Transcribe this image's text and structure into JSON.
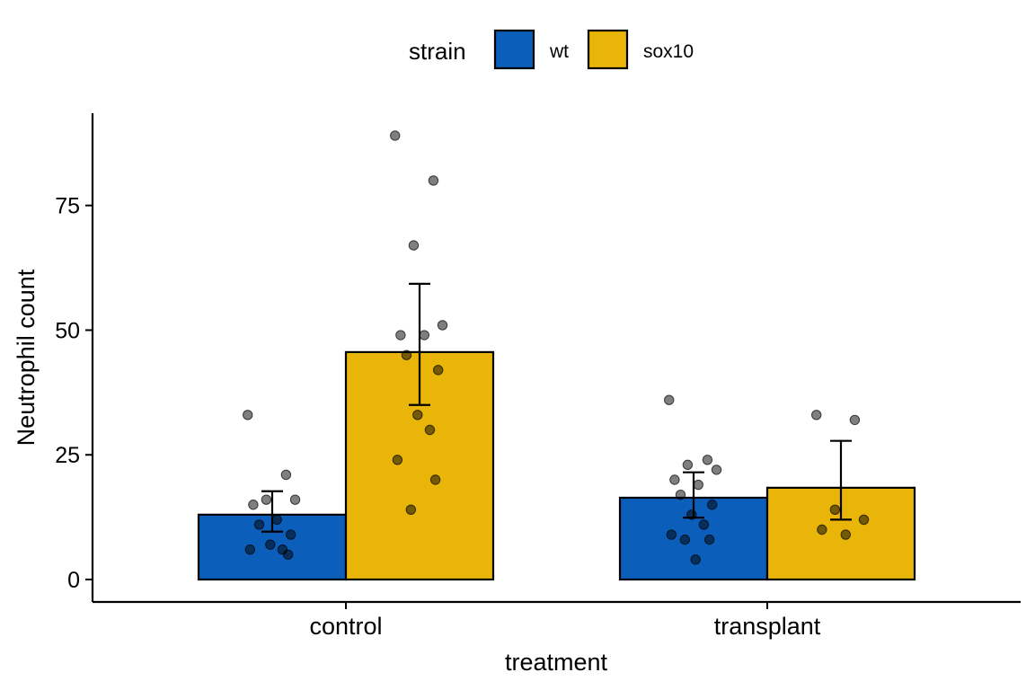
{
  "chart_data": {
    "type": "bar",
    "xlabel": "treatment",
    "ylabel": "Neutrophil count",
    "categories": [
      "control",
      "transplant"
    ],
    "ylim": [
      -4.5,
      93.5
    ],
    "yticks": [
      0,
      25,
      50,
      75
    ],
    "grid": false,
    "legend": {
      "title": "strain",
      "position": "top"
    },
    "series": [
      {
        "name": "wt",
        "color": "#0C5EBB",
        "values": [
          13.0,
          16.4
        ],
        "error": [
          [
            9.6,
            17.7
          ],
          [
            12.4,
            21.5
          ]
        ],
        "points": [
          [
            33,
            21,
            16,
            16,
            15,
            12,
            11,
            9,
            7,
            6,
            6,
            5
          ],
          [
            36,
            24,
            23,
            22,
            20,
            19,
            17,
            15,
            13,
            11,
            9,
            8,
            8,
            4
          ]
        ]
      },
      {
        "name": "sox10",
        "color": "#E9B508",
        "values": [
          45.6,
          18.4
        ],
        "error": [
          [
            35.0,
            59.3
          ],
          [
            12.0,
            27.8
          ]
        ],
        "points": [
          [
            89,
            80,
            67,
            51,
            49,
            49,
            45,
            42,
            33,
            30,
            24,
            20,
            14
          ],
          [
            33,
            32,
            14,
            12,
            10,
            9
          ]
        ]
      }
    ]
  }
}
